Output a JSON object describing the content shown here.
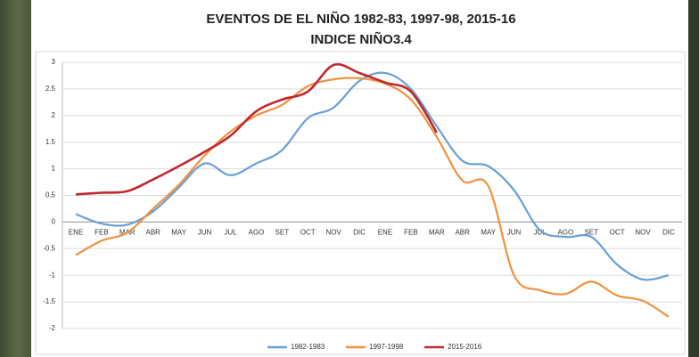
{
  "chart_data": {
    "type": "line",
    "title": "EVENTOS DE EL NIÑO 1982-83, 1997-98, 2015-16",
    "subtitle": "INDICE NIÑO3.4",
    "categories": [
      "ENE",
      "FEB",
      "MAR",
      "ABR",
      "MAY",
      "JUN",
      "JUL",
      "AGO",
      "SET",
      "OCT",
      "NOV",
      "DIC",
      "ENE",
      "FEB",
      "MAR",
      "ABR",
      "MAY",
      "JUN",
      "JUL",
      "AGO",
      "SET",
      "OCT",
      "NOV",
      "DIC"
    ],
    "ylim": [
      -2,
      3
    ],
    "yticks": [
      -2,
      -1.5,
      -1,
      -0.5,
      0,
      0.5,
      1,
      1.5,
      2,
      2.5,
      3
    ],
    "grid": true,
    "legend": "bottom",
    "series": [
      {
        "name": "1982-1983",
        "color": "#6a9fd4",
        "values": [
          0.15,
          -0.03,
          -0.05,
          0.2,
          0.65,
          1.1,
          0.88,
          1.1,
          1.35,
          1.95,
          2.15,
          2.65,
          2.8,
          2.5,
          1.8,
          1.15,
          1.05,
          0.6,
          -0.15,
          -0.28,
          -0.28,
          -0.8,
          -1.08,
          -1.0
        ]
      },
      {
        "name": "1997-1998",
        "color": "#f0913e",
        "values": [
          -0.62,
          -0.35,
          -0.2,
          0.25,
          0.7,
          1.25,
          1.7,
          2.0,
          2.2,
          2.55,
          2.68,
          2.7,
          2.6,
          2.3,
          1.6,
          0.78,
          0.68,
          -1.0,
          -1.28,
          -1.35,
          -1.12,
          -1.38,
          -1.48,
          -1.78
        ]
      },
      {
        "name": "2015-2016",
        "color": "#c0282d",
        "values": [
          0.52,
          0.55,
          0.58,
          0.8,
          1.05,
          1.32,
          1.62,
          2.08,
          2.3,
          2.45,
          2.95,
          2.8,
          2.62,
          2.45,
          1.68,
          null,
          null,
          null,
          null,
          null,
          null,
          null,
          null,
          null
        ]
      }
    ]
  }
}
